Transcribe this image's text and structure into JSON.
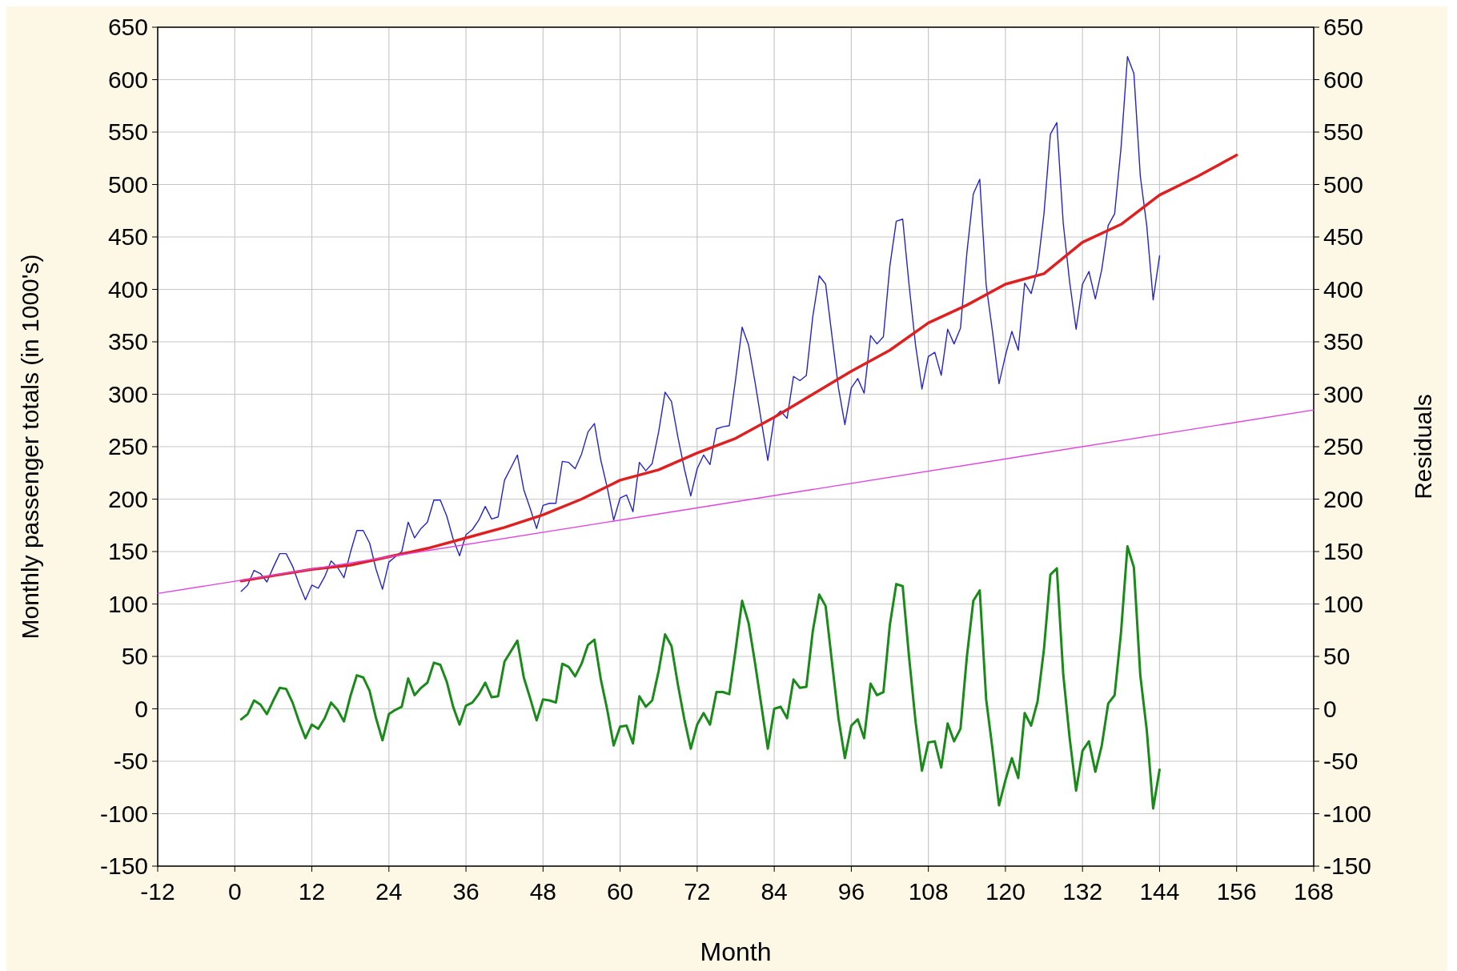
{
  "chart_data": {
    "type": "line",
    "xlabel": "Month",
    "ylabel": "Monthly passenger totals (in 1000's)",
    "y2label": "Residuals",
    "x": [
      1,
      2,
      3,
      4,
      5,
      6,
      7,
      8,
      9,
      10,
      11,
      12,
      13,
      14,
      15,
      16,
      17,
      18,
      19,
      20,
      21,
      22,
      23,
      24,
      25,
      26,
      27,
      28,
      29,
      30,
      31,
      32,
      33,
      34,
      35,
      36,
      37,
      38,
      39,
      40,
      41,
      42,
      43,
      44,
      45,
      46,
      47,
      48,
      49,
      50,
      51,
      52,
      53,
      54,
      55,
      56,
      57,
      58,
      59,
      60,
      61,
      62,
      63,
      64,
      65,
      66,
      67,
      68,
      69,
      70,
      71,
      72,
      73,
      74,
      75,
      76,
      77,
      78,
      79,
      80,
      81,
      82,
      83,
      84,
      85,
      86,
      87,
      88,
      89,
      90,
      91,
      92,
      93,
      94,
      95,
      96,
      97,
      98,
      99,
      100,
      101,
      102,
      103,
      104,
      105,
      106,
      107,
      108,
      109,
      110,
      111,
      112,
      113,
      114,
      115,
      116,
      117,
      118,
      119,
      120,
      121,
      122,
      123,
      124,
      125,
      126,
      127,
      128,
      129,
      130,
      131,
      132,
      133,
      134,
      135,
      136,
      137,
      138,
      139,
      140,
      141,
      142,
      143,
      144
    ],
    "series": [
      {
        "color": "#2424c8",
        "values": [
          112,
          118,
          132,
          129,
          121,
          135,
          148,
          148,
          136,
          119,
          104,
          118,
          115,
          126,
          141,
          135,
          125,
          149,
          170,
          170,
          158,
          133,
          114,
          140,
          145,
          150,
          178,
          163,
          172,
          178,
          199,
          199,
          184,
          162,
          146,
          166,
          171,
          180,
          193,
          181,
          183,
          218,
          230,
          242,
          209,
          191,
          172,
          194,
          196,
          196,
          236,
          235,
          229,
          243,
          264,
          272,
          237,
          211,
          180,
          201,
          204,
          188,
          235,
          227,
          234,
          264,
          302,
          293,
          259,
          229,
          203,
          229,
          242,
          233,
          267,
          269,
          270,
          315,
          364,
          347,
          312,
          274,
          237,
          278,
          284,
          277,
          317,
          313,
          318,
          374,
          413,
          405,
          355,
          306,
          271,
          306,
          315,
          301,
          356,
          348,
          355,
          422,
          465,
          467,
          404,
          347,
          305,
          336,
          340,
          318,
          362,
          348,
          363,
          435,
          491,
          505,
          404,
          359,
          310,
          337,
          360,
          342,
          406,
          396,
          420,
          472,
          548,
          559,
          463,
          407,
          362,
          405,
          417,
          391,
          419,
          461,
          472,
          535,
          622,
          606,
          508,
          461,
          390,
          432
        ]
      },
      {
        "color": "#e02020",
        "x": [
          1,
          6,
          12,
          18,
          24,
          30,
          36,
          42,
          48,
          54,
          60,
          66,
          72,
          78,
          84,
          90,
          96,
          102,
          108,
          114,
          120,
          126,
          132,
          138,
          144,
          150,
          156
        ],
        "values": [
          122,
          127,
          133,
          137,
          145,
          153,
          163,
          173,
          185,
          200,
          218,
          228,
          244,
          258,
          278,
          300,
          322,
          342,
          368,
          385,
          405,
          415,
          445,
          462,
          490,
          508,
          528
        ]
      },
      {
        "color": "#e040e0",
        "x": [
          -12,
          168
        ],
        "values": [
          110,
          285
        ]
      },
      {
        "color": "#1a8a1a",
        "values": [
          -10,
          -5,
          8,
          4,
          -5,
          8,
          20,
          19,
          6,
          -12,
          -28,
          -15,
          -19,
          -9,
          6,
          -1,
          -12,
          12,
          32,
          30,
          17,
          -9,
          -30,
          -5,
          -1,
          2,
          29,
          13,
          20,
          25,
          44,
          42,
          26,
          2,
          -15,
          3,
          6,
          14,
          25,
          11,
          12,
          45,
          55,
          65,
          30,
          10,
          -11,
          9,
          8,
          6,
          43,
          40,
          31,
          43,
          61,
          66,
          28,
          -1,
          -35,
          -17,
          -16,
          -33,
          12,
          2,
          8,
          36,
          71,
          60,
          23,
          -10,
          -38,
          -15,
          -4,
          -15,
          16,
          16,
          14,
          57,
          103,
          82,
          44,
          3,
          -38,
          0,
          2,
          -9,
          28,
          20,
          21,
          74,
          109,
          98,
          44,
          -9,
          -47,
          -16,
          -10,
          -28,
          24,
          13,
          16,
          80,
          119,
          117,
          49,
          -12,
          -59,
          -32,
          -31,
          -56,
          -14,
          -31,
          -19,
          50,
          103,
          113,
          9,
          -39,
          -92,
          -68,
          -47,
          -66,
          -4,
          -16,
          7,
          57,
          128,
          134,
          33,
          -28,
          -78,
          -40,
          -31,
          -60,
          -35,
          5,
          13,
          73,
          155,
          135,
          32,
          -20,
          -95,
          -58
        ]
      }
    ],
    "xlim": [
      -12,
      168
    ],
    "xticks": [
      -12,
      0,
      12,
      24,
      36,
      48,
      60,
      72,
      84,
      96,
      108,
      120,
      132,
      144,
      156,
      168
    ],
    "ylim": [
      -150,
      650
    ],
    "yticks": [
      -150,
      -100,
      -50,
      0,
      50,
      100,
      150,
      200,
      250,
      300,
      350,
      400,
      450,
      500,
      550,
      600,
      650
    ],
    "y2lim": [
      -150,
      650
    ],
    "y2ticks": [
      -150,
      -100,
      -50,
      0,
      50,
      100,
      150,
      200,
      250,
      300,
      350,
      400,
      450,
      500,
      550,
      600,
      650
    ],
    "grid": true,
    "marker": "none",
    "line_style": "solid"
  }
}
